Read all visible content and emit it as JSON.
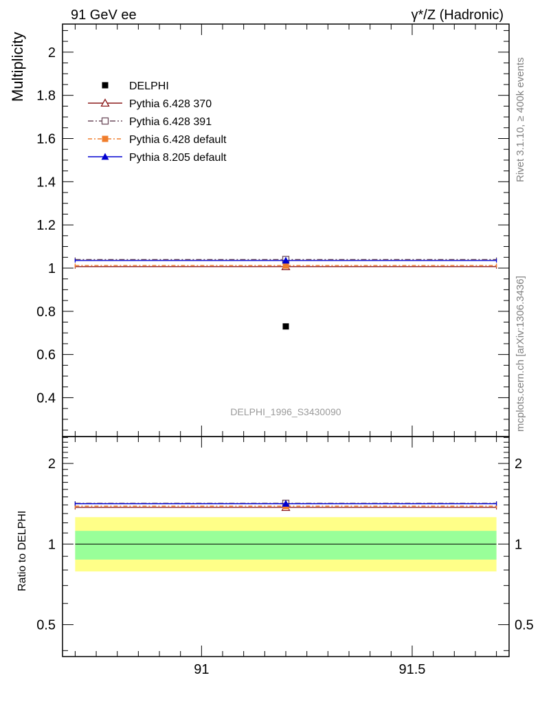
{
  "chart_data": {
    "type": "scatter",
    "header_left": "91 GeV ee",
    "header_right": "γ*/Z (Hadronic)",
    "ylabel": "Multiplicity",
    "ratio_ylabel": "Ratio to DELPHI",
    "analysis_label": "DELPHI_1996_S3430090",
    "side_label_top": "Rivet 3.1.10, ≥ 400k events",
    "side_label_bottom": "mcplots.cern.ch [arXiv:1306.3436]",
    "xlim": [
      90.67,
      91.73
    ],
    "ylim": [
      0.22,
      2.13
    ],
    "ratio_ylim": [
      0.38,
      2.52
    ],
    "x_ticks": [
      {
        "value": 91,
        "label": "91"
      },
      {
        "value": 91.5,
        "label": "91.5"
      }
    ],
    "y_ticks": [
      {
        "value": 0.4,
        "label": "0.4"
      },
      {
        "value": 0.6,
        "label": "0.6"
      },
      {
        "value": 0.8,
        "label": "0.8"
      },
      {
        "value": 1.0,
        "label": "1"
      },
      {
        "value": 1.2,
        "label": "1.2"
      },
      {
        "value": 1.4,
        "label": "1.4"
      },
      {
        "value": 1.6,
        "label": "1.6"
      },
      {
        "value": 1.8,
        "label": "1.8"
      },
      {
        "value": 2.0,
        "label": "2"
      }
    ],
    "ratio_ticks": [
      {
        "value": 0.5,
        "label": "0.5"
      },
      {
        "value": 1.0,
        "label": "1"
      },
      {
        "value": 2.0,
        "label": "2"
      }
    ],
    "data": {
      "name": "DELPHI",
      "x": 91.2,
      "y": 0.73,
      "color": "#000000"
    },
    "series": [
      {
        "name": "Pythia 6.428 370",
        "y": 1.007,
        "ratio": 1.37,
        "color": "#8b1a1a",
        "marker": "triangle-open",
        "dash": ""
      },
      {
        "name": "Pythia 6.428 391",
        "y": 1.04,
        "ratio": 1.42,
        "color": "#6b4a5a",
        "marker": "square-open",
        "dash": "8,3,2,3"
      },
      {
        "name": "Pythia 6.428 default",
        "y": 1.012,
        "ratio": 1.385,
        "color": "#f07d2c",
        "marker": "square-filled",
        "dash": "6,3,2,3"
      },
      {
        "name": "Pythia 8.205 default",
        "y": 1.035,
        "ratio": 1.415,
        "color": "#0000d0",
        "marker": "triangle-filled",
        "dash": ""
      }
    ],
    "x_range": [
      90.7,
      91.7
    ],
    "bands": {
      "inner": [
        0.875,
        1.12
      ],
      "outer": [
        0.79,
        1.26
      ],
      "inner_color": "#99ff99",
      "outer_color": "#ffff88"
    }
  }
}
